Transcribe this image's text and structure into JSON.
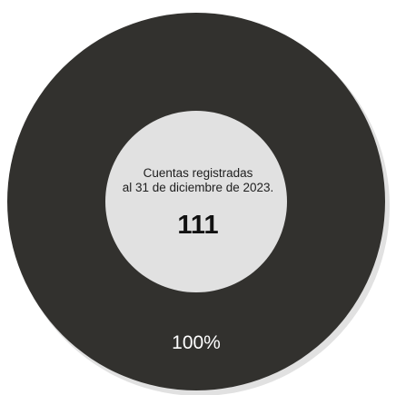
{
  "chart_data": {
    "type": "pie",
    "variant": "donut",
    "categories": [
      "Cuentas registradas"
    ],
    "values": [
      111
    ],
    "data_labels": [
      "100%"
    ],
    "colors": {
      "slice": "#32312e",
      "shadow": "#c9c9c9",
      "data_label": "#ffffff",
      "background": "#ffffff"
    },
    "legend": "none"
  },
  "center": {
    "line1": "Cuentas registradas",
    "line2": "al 31 de diciembre de 2023.",
    "value": "111"
  }
}
